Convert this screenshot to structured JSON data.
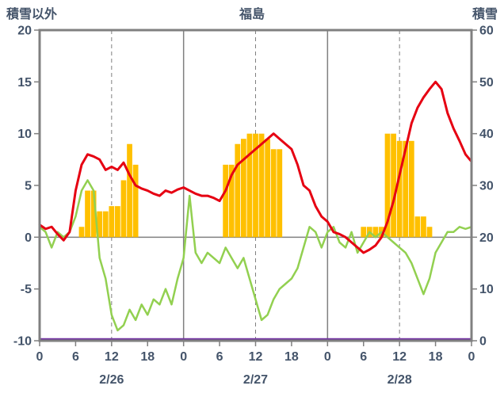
{
  "header": {
    "left_axis_title": "積雪以外",
    "station": "福島",
    "right_axis_title": "積雪"
  },
  "chart_data": {
    "type": "line",
    "subtype": "combo-bar-line",
    "title": "福島",
    "x_range": {
      "start_hour": 0,
      "end_hour": 72,
      "step_hours": 1
    },
    "x_ticks": {
      "interval_hours": 6,
      "labels": [
        "0",
        "6",
        "12",
        "18",
        "0",
        "6",
        "12",
        "18",
        "0",
        "6",
        "12",
        "18",
        "0"
      ]
    },
    "day_labels": [
      {
        "label": "2/26",
        "center_hour": 12
      },
      {
        "label": "2/27",
        "center_hour": 36
      },
      {
        "label": "2/28",
        "center_hour": 60
      }
    ],
    "left_axis": {
      "title": "積雪以外",
      "min": -10,
      "max": 20,
      "ticks": [
        20,
        15,
        10,
        5,
        0,
        -5,
        -10
      ]
    },
    "right_axis": {
      "title": "積雪",
      "min": 0,
      "max": 60,
      "ticks": [
        60,
        50,
        40,
        30,
        20,
        10,
        0
      ]
    },
    "grid": {
      "color": "#808080",
      "solid_vlines_hours": [
        24,
        48
      ],
      "dashed_vlines_hours": [
        12,
        36,
        60
      ],
      "hline_left_value": 0
    },
    "frame_color": "#808080",
    "text_color": "#44546A",
    "series": [
      {
        "name": "orange-bars",
        "kind": "bar",
        "axis": "left",
        "color": "#FFC000",
        "values": [
          0,
          0,
          0,
          0,
          0,
          0,
          0,
          1,
          4.5,
          4.5,
          2.5,
          2.5,
          3,
          3,
          5.5,
          9,
          7,
          0,
          0,
          0,
          0,
          0,
          0,
          0,
          0,
          0,
          0,
          0,
          0,
          0,
          0,
          7,
          7,
          9,
          9.5,
          10,
          10,
          10,
          9.5,
          8.5,
          8.5,
          0,
          0,
          0,
          0,
          0,
          0,
          0,
          0,
          0,
          0,
          0,
          0,
          0,
          1,
          1,
          1,
          1,
          10,
          10,
          9.3,
          9.3,
          9.3,
          2,
          2,
          1,
          0,
          0,
          0,
          0,
          0,
          0,
          0
        ]
      },
      {
        "name": "green-line",
        "kind": "line",
        "axis": "left",
        "color": "#92D050",
        "width": 2.5,
        "values": [
          1.0,
          0.5,
          -1.0,
          0.5,
          0.0,
          0.5,
          2.0,
          4.5,
          5.5,
          4.5,
          -2.0,
          -4.0,
          -7.5,
          -9.0,
          -8.5,
          -7.0,
          -8.0,
          -6.5,
          -7.5,
          -6.0,
          -6.5,
          -5.0,
          -6.5,
          -4.0,
          -2.0,
          4.0,
          -1.5,
          -2.5,
          -1.5,
          -2.0,
          -2.5,
          -1.0,
          -2.0,
          -3.0,
          -2.0,
          -4.0,
          -6.0,
          -8.0,
          -7.5,
          -6.0,
          -5.0,
          -4.5,
          -4.0,
          -3.0,
          -1.0,
          1.0,
          0.5,
          -1.0,
          0.5,
          1.0,
          -0.5,
          -1.0,
          0.5,
          -1.5,
          -0.5,
          0.5,
          0.0,
          0.5,
          0.0,
          -0.5,
          -1.0,
          -1.5,
          -2.5,
          -4.0,
          -5.5,
          -4.0,
          -1.5,
          -0.5,
          0.5,
          0.5,
          1.0,
          0.8,
          1.0
        ]
      },
      {
        "name": "red-line",
        "kind": "line",
        "axis": "left",
        "color": "#E60012",
        "width": 3,
        "values": [
          1.2,
          0.8,
          1.0,
          0.3,
          -0.3,
          0.5,
          4.5,
          7.0,
          8.0,
          7.8,
          7.5,
          6.5,
          6.8,
          6.5,
          7.2,
          6.0,
          5.0,
          4.7,
          4.5,
          4.2,
          4.0,
          4.5,
          4.3,
          4.6,
          4.8,
          4.5,
          4.2,
          4.0,
          4.0,
          3.8,
          3.5,
          4.5,
          6.0,
          7.0,
          7.5,
          8.0,
          8.5,
          9.0,
          9.5,
          10.0,
          9.5,
          9.0,
          8.5,
          7.0,
          5.0,
          4.5,
          3.0,
          2.0,
          1.5,
          0.5,
          0.3,
          0.0,
          -0.5,
          -1.0,
          -1.5,
          -1.2,
          -0.8,
          0.0,
          1.5,
          3.5,
          6.0,
          8.5,
          11.0,
          12.5,
          13.5,
          14.3,
          15.0,
          14.3,
          12.0,
          10.5,
          9.3,
          8.0,
          7.3
        ]
      },
      {
        "name": "purple-snow-line",
        "kind": "line",
        "axis": "right",
        "color": "#7030A0",
        "width": 2.5,
        "constant": 0
      }
    ]
  }
}
